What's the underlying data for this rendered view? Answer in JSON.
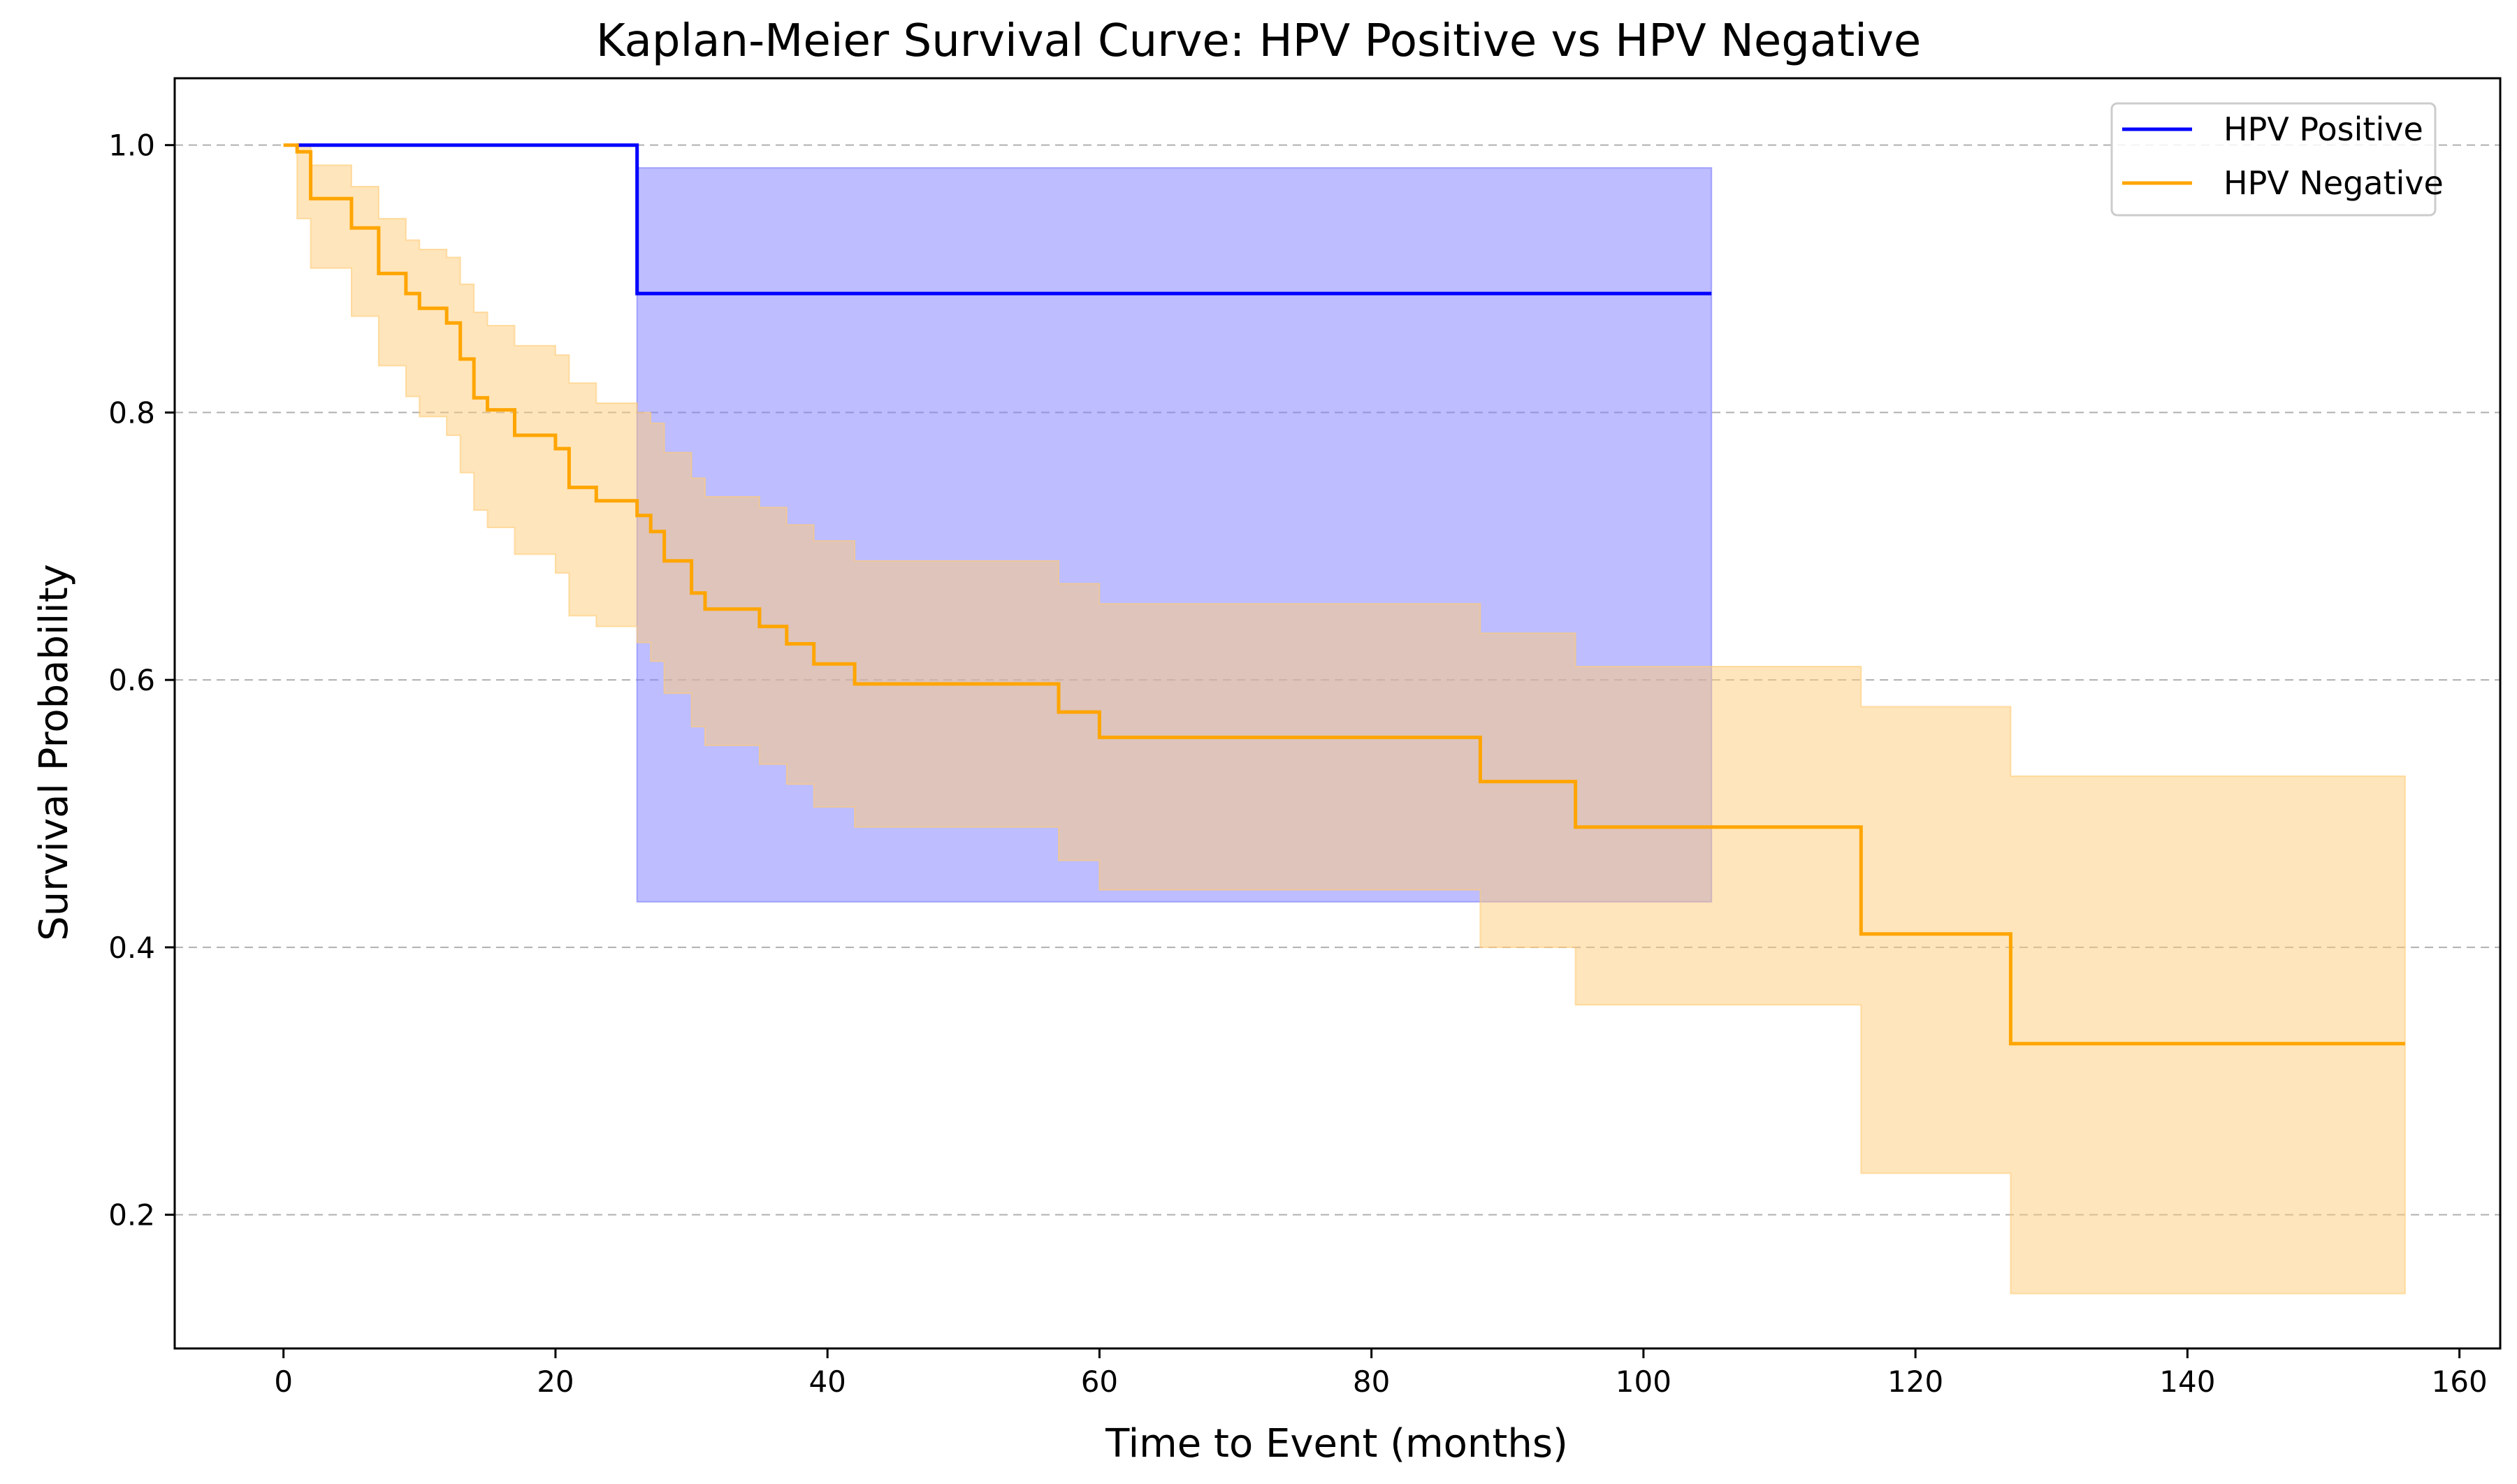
{
  "chart_data": {
    "type": "line",
    "subtype": "step",
    "title": "Kaplan-Meier Survival Curve: HPV Positive vs HPV Negative",
    "xlabel": "Time to Event (months)",
    "ylabel": "Survival Probability",
    "xlim": [
      -8,
      163
    ],
    "ylim": [
      0.1,
      1.05
    ],
    "xticks": [
      0,
      20,
      40,
      60,
      80,
      100,
      120,
      140,
      160
    ],
    "xtick_labels": [
      "0",
      "20",
      "40",
      "60",
      "80",
      "100",
      "120",
      "140",
      "160"
    ],
    "yticks": [
      0.2,
      0.4,
      0.6,
      0.8,
      1.0
    ],
    "ytick_labels": [
      "0.2",
      "0.4",
      "0.6",
      "0.8",
      "1.0"
    ],
    "grid": "y-dashed",
    "legend_position": "top-right",
    "series": [
      {
        "name": "HPV Positive",
        "color": "#0000ff",
        "ci_color": "#7b7bff",
        "ci_opacity": 0.5,
        "x": [
          1,
          26,
          105
        ],
        "y": [
          1.0,
          0.889,
          0.889
        ],
        "ci_x": [
          26,
          105
        ],
        "ci_lower": [
          0.434,
          0.434
        ],
        "ci_upper": [
          0.983,
          0.983
        ]
      },
      {
        "name": "HPV Negative",
        "color": "#ffa500",
        "ci_color": "#ffcc77",
        "ci_opacity": 0.5,
        "x": [
          0,
          1,
          2,
          5,
          7,
          9,
          10,
          12,
          13,
          14,
          15,
          17,
          20,
          21,
          23,
          26,
          27,
          28,
          30,
          31,
          32,
          35,
          37,
          39,
          42,
          57,
          60,
          88,
          95,
          116,
          127,
          156
        ],
        "y": [
          1.0,
          0.995,
          0.96,
          0.938,
          0.904,
          0.889,
          0.878,
          0.867,
          0.84,
          0.811,
          0.802,
          0.783,
          0.773,
          0.744,
          0.734,
          0.723,
          0.711,
          0.689,
          0.665,
          0.653,
          0.653,
          0.64,
          0.627,
          0.612,
          0.597,
          0.576,
          0.557,
          0.524,
          0.49,
          0.41,
          0.328,
          0.328
        ],
        "ci_x": [
          1,
          2,
          5,
          7,
          9,
          10,
          12,
          13,
          14,
          15,
          17,
          20,
          21,
          23,
          26,
          27,
          28,
          30,
          31,
          32,
          35,
          37,
          39,
          42,
          57,
          60,
          88,
          95,
          116,
          127,
          156
        ],
        "ci_lower": [
          0.945,
          0.908,
          0.872,
          0.835,
          0.812,
          0.797,
          0.783,
          0.755,
          0.727,
          0.714,
          0.694,
          0.68,
          0.648,
          0.64,
          0.628,
          0.614,
          0.59,
          0.565,
          0.551,
          0.551,
          0.537,
          0.522,
          0.505,
          0.49,
          0.465,
          0.443,
          0.4,
          0.357,
          0.231,
          0.141,
          0.141
        ],
        "ci_upper": [
          1.0,
          0.985,
          0.969,
          0.945,
          0.929,
          0.922,
          0.916,
          0.896,
          0.875,
          0.865,
          0.85,
          0.843,
          0.822,
          0.807,
          0.8,
          0.792,
          0.77,
          0.751,
          0.737,
          0.737,
          0.729,
          0.716,
          0.704,
          0.689,
          0.672,
          0.657,
          0.635,
          0.61,
          0.58,
          0.528,
          0.528
        ]
      }
    ]
  }
}
